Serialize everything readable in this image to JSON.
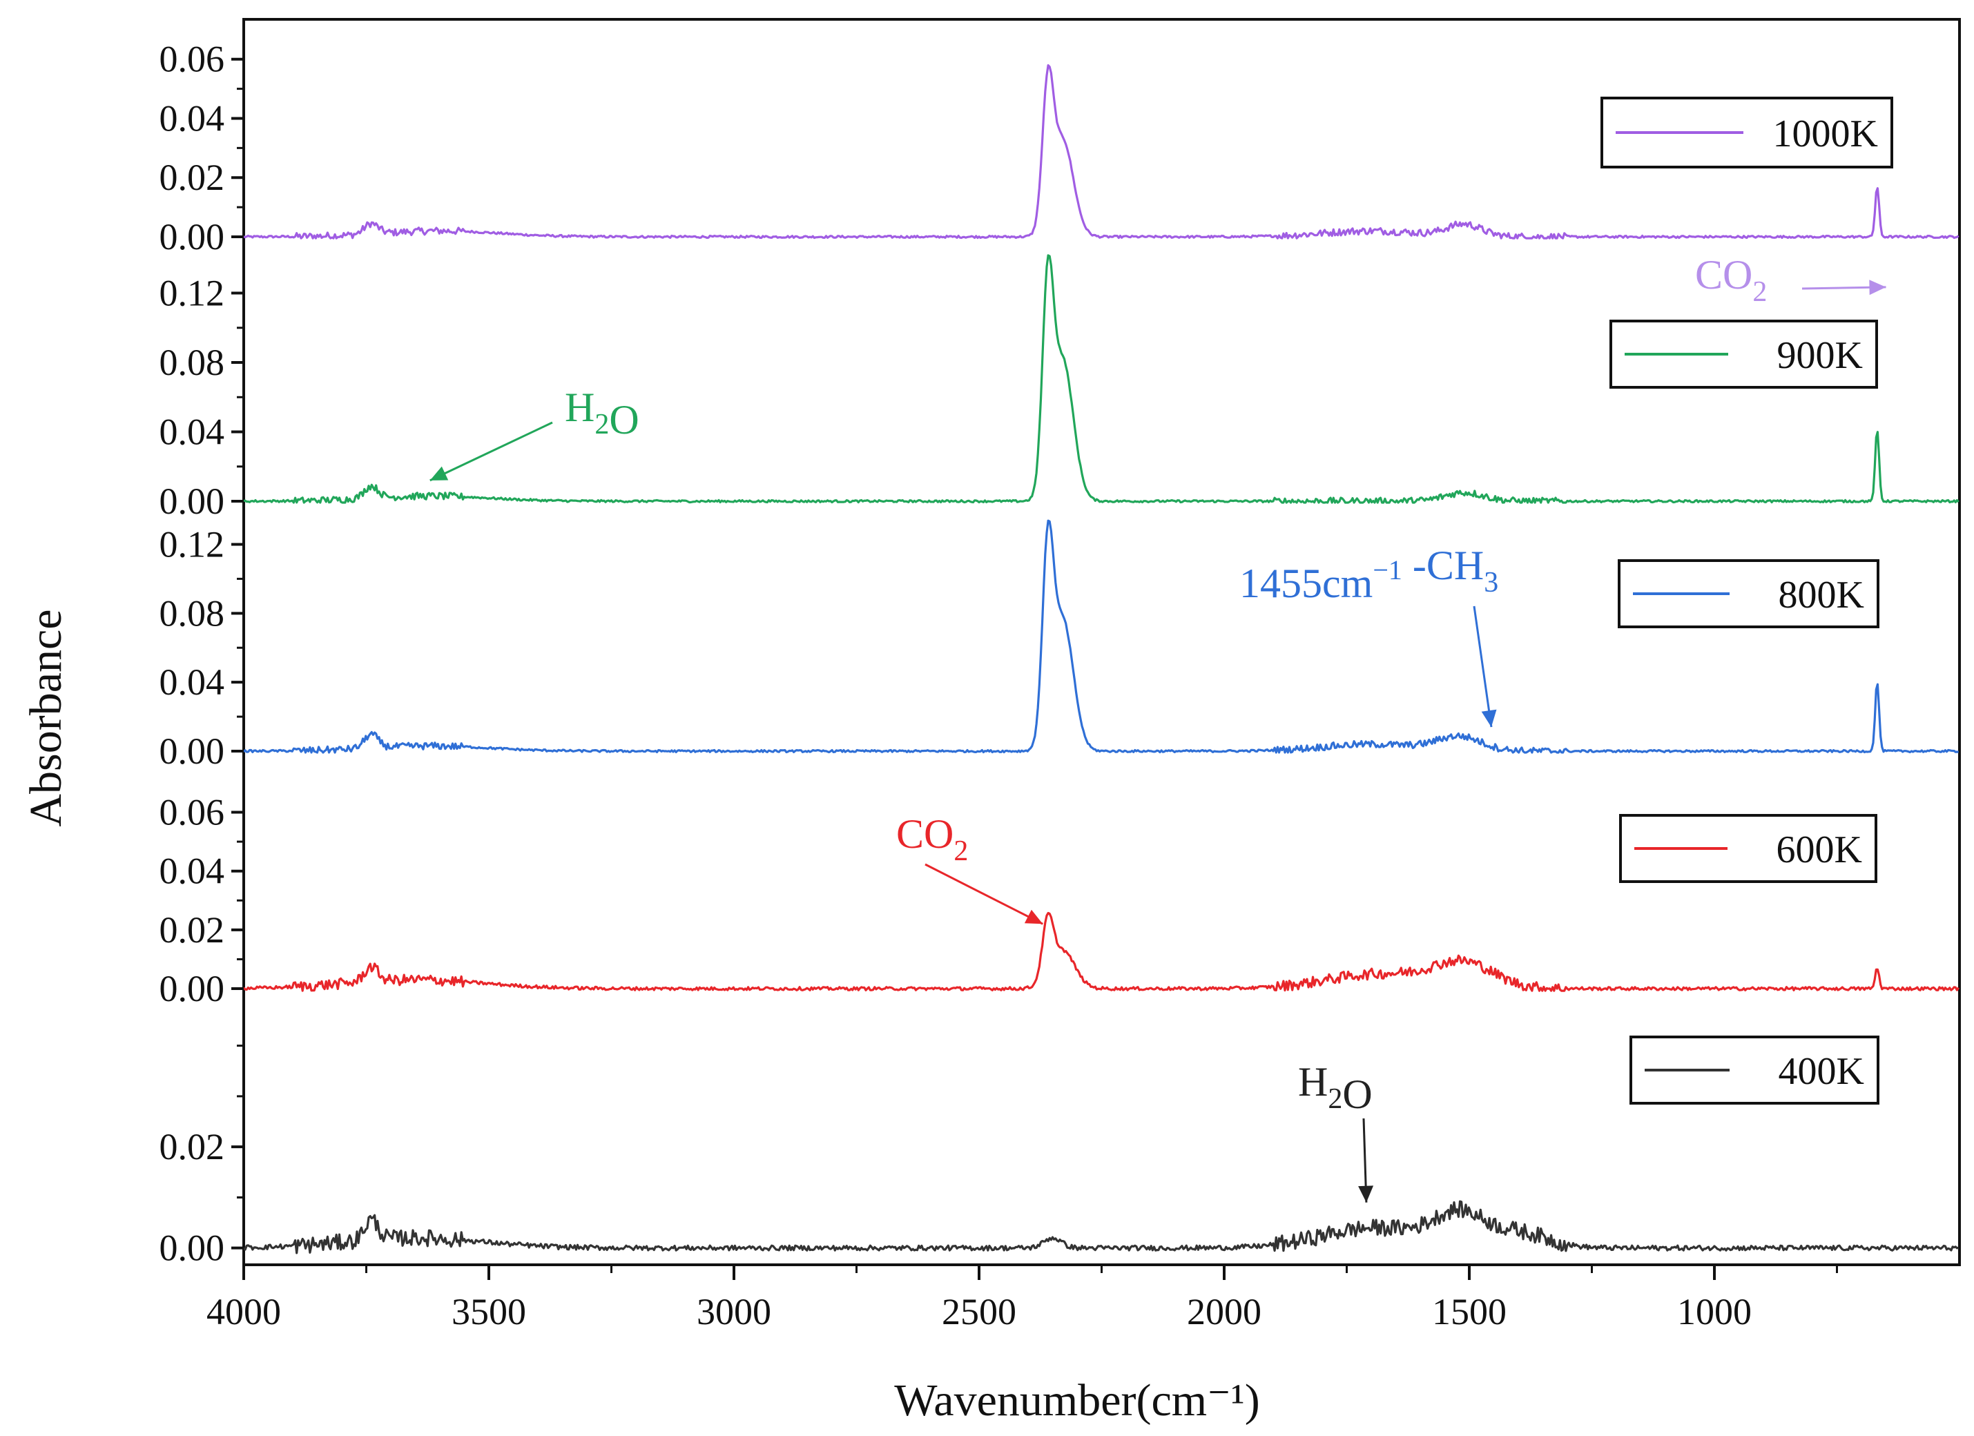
{
  "chart_data": {
    "type": "line",
    "title": "",
    "xlabel": "Wavenumber(cm⁻¹)",
    "ylabel": "Absorbance",
    "xlim": [
      4000,
      500
    ],
    "xticks": [
      4000,
      3500,
      3000,
      2500,
      2000,
      1500,
      1000
    ],
    "series": [
      {
        "name": "1000K",
        "color": "#a05de3",
        "ylim": [
          0,
          0.066
        ],
        "yticks": [
          "0.06",
          "0.04",
          "0.02",
          "0.00"
        ],
        "yticks_values": [
          0.06,
          0.04,
          0.02,
          0
        ],
        "noise": 0.0012,
        "peaks": [
          {
            "center": 3740,
            "height": 0.0035,
            "width": 14
          },
          {
            "center": 3600,
            "height": 0.002,
            "width": 120
          },
          {
            "center": 2360,
            "height": 0.044,
            "width": 11
          },
          {
            "center": 2330,
            "height": 0.033,
            "width": 22
          },
          {
            "center": 1700,
            "height": 0.002,
            "width": 100
          },
          {
            "center": 1510,
            "height": 0.004,
            "width": 35
          },
          {
            "center": 668,
            "height": 0.017,
            "width": 4
          }
        ]
      },
      {
        "name": "900K",
        "color": "#21a65a",
        "ylim": [
          0,
          0.125
        ],
        "yticks": [
          "0.12",
          "0.08",
          "0.04",
          "0.00"
        ],
        "yticks_values": [
          0.12,
          0.08,
          0.04,
          0
        ],
        "noise": 0.002,
        "peaks": [
          {
            "center": 3740,
            "height": 0.007,
            "width": 14
          },
          {
            "center": 3620,
            "height": 0.003,
            "width": 120
          },
          {
            "center": 2360,
            "height": 0.108,
            "width": 11
          },
          {
            "center": 2330,
            "height": 0.082,
            "width": 22
          },
          {
            "center": 1510,
            "height": 0.005,
            "width": 40
          },
          {
            "center": 668,
            "height": 0.041,
            "width": 4
          }
        ]
      },
      {
        "name": "800K",
        "color": "#2f6fd6",
        "ylim": [
          0,
          0.125
        ],
        "yticks": [
          "0.12",
          "0.08",
          "0.04",
          "0.00"
        ],
        "yticks_values": [
          0.12,
          0.08,
          0.04,
          0
        ],
        "noise": 0.002,
        "peaks": [
          {
            "center": 3740,
            "height": 0.008,
            "width": 14
          },
          {
            "center": 3620,
            "height": 0.003,
            "width": 120
          },
          {
            "center": 2360,
            "height": 0.102,
            "width": 11
          },
          {
            "center": 2330,
            "height": 0.077,
            "width": 22
          },
          {
            "center": 1700,
            "height": 0.004,
            "width": 100
          },
          {
            "center": 1520,
            "height": 0.008,
            "width": 45
          },
          {
            "center": 668,
            "height": 0.04,
            "width": 4
          }
        ]
      },
      {
        "name": "600K",
        "color": "#e8262a",
        "ylim": [
          0,
          0.066
        ],
        "yticks": [
          "0.06",
          "0.04",
          "0.02",
          "0.00"
        ],
        "yticks_values": [
          0.06,
          0.04,
          0.02,
          0
        ],
        "noise": 0.0018,
        "peaks": [
          {
            "center": 3740,
            "height": 0.005,
            "width": 14
          },
          {
            "center": 3650,
            "height": 0.003,
            "width": 140
          },
          {
            "center": 2360,
            "height": 0.019,
            "width": 11
          },
          {
            "center": 2330,
            "height": 0.013,
            "width": 25
          },
          {
            "center": 1680,
            "height": 0.005,
            "width": 110
          },
          {
            "center": 1510,
            "height": 0.008,
            "width": 60
          },
          {
            "center": 668,
            "height": 0.007,
            "width": 4
          }
        ]
      },
      {
        "name": "400K",
        "color": "#333333",
        "ylim": [
          -0.001,
          0.042
        ],
        "yticks": [
          "0.02",
          "0.00"
        ],
        "yticks_values": [
          0.02,
          0
        ],
        "noise": 0.0016,
        "peaks": [
          {
            "center": 3740,
            "height": 0.004,
            "width": 14
          },
          {
            "center": 3650,
            "height": 0.002,
            "width": 140
          },
          {
            "center": 2350,
            "height": 0.002,
            "width": 18
          },
          {
            "center": 1690,
            "height": 0.004,
            "width": 110
          },
          {
            "center": 1520,
            "height": 0.006,
            "width": 50
          },
          {
            "center": 1400,
            "height": 0.003,
            "width": 60
          }
        ]
      }
    ],
    "annotations": [
      {
        "id": "co2-top",
        "text": "CO",
        "sub": "2",
        "color": "#b58fea",
        "panel": "1000K",
        "target_x": 650,
        "target_y": -0.017
      },
      {
        "id": "h2o-900",
        "text": "H",
        "sub": "2",
        "tail": "O",
        "color": "#21a65a",
        "panel": "900K",
        "target_x": 3620,
        "target_y": 0.012
      },
      {
        "id": "ch3-800",
        "text": "1455cm",
        "sup": "−1",
        "tail": " -CH",
        "sub2": "3",
        "color": "#2f6fd6",
        "panel": "800K",
        "target_x": 1455,
        "target_y": 0.014
      },
      {
        "id": "co2-600",
        "text": "CO",
        "sub": "2",
        "color": "#e8262a",
        "panel": "600K",
        "target_x": 2370,
        "target_y": 0.022
      },
      {
        "id": "h2o-400",
        "text": "H",
        "sub": "2",
        "tail": "O",
        "color": "#222222",
        "panel": "400K",
        "target_x": 1710,
        "target_y": 0.009
      }
    ]
  }
}
